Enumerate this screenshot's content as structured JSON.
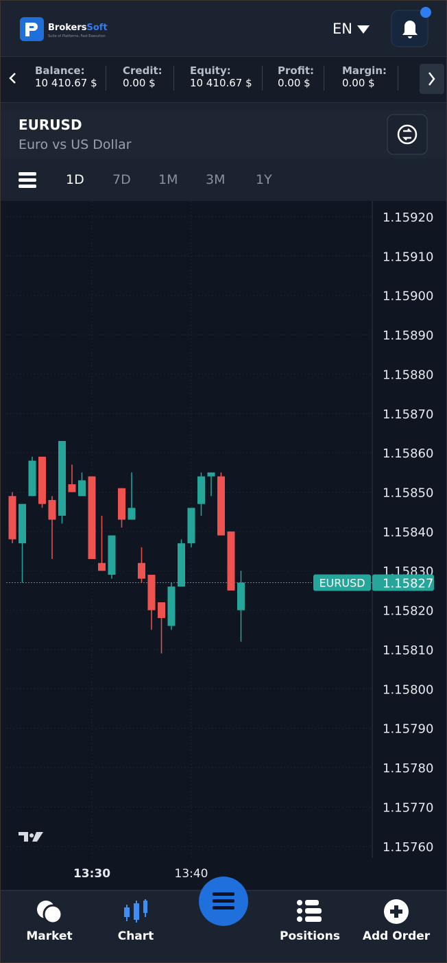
{
  "header": {
    "brand": "Brokers",
    "brand_accent": "Soft",
    "tagline": "Suite of Platforms, Fast Execution",
    "language": "EN"
  },
  "account": [
    {
      "label": "Balance:",
      "value": "10 410.67 $"
    },
    {
      "label": "Credit:",
      "value": "0.00 $"
    },
    {
      "label": "Equity:",
      "value": "10 410.67 $"
    },
    {
      "label": "Profit:",
      "value": "0.00 $"
    },
    {
      "label": "Margin:",
      "value": "0.00 $"
    }
  ],
  "instrument": {
    "symbol": "EURUSD",
    "description": "Euro vs US Dollar"
  },
  "timeframes": [
    "1D",
    "7D",
    "1M",
    "3M",
    "1Y"
  ],
  "active_timeframe": 0,
  "chart_data": {
    "type": "candlestick",
    "categories": [
      null,
      null,
      null,
      null,
      null,
      null,
      null,
      null,
      "13:30",
      null,
      null,
      null,
      null,
      null,
      null,
      null,
      null,
      null,
      "13:40",
      null,
      null,
      null,
      null,
      null
    ],
    "series": [
      {
        "name": "EURUSD",
        "up_color": "#26a69a",
        "down_color": "#ef5350",
        "open": [
          1.15849,
          1.15837,
          1.15849,
          1.15859,
          1.15848,
          1.15844,
          1.15852,
          1.15849,
          1.15854,
          1.15832,
          1.15829,
          1.15851,
          1.15843,
          1.15832,
          1.15829,
          1.15822,
          1.15816,
          1.15826,
          1.15837,
          1.15847,
          1.15854,
          1.15854,
          1.1584,
          1.1582
        ],
        "high": [
          1.1585,
          1.15847,
          1.15859,
          1.15859,
          1.15849,
          1.15863,
          1.15857,
          1.15855,
          1.15854,
          1.15844,
          1.15839,
          1.15851,
          1.15855,
          1.15836,
          1.15829,
          1.15822,
          1.15827,
          1.15838,
          1.15846,
          1.15855,
          1.15855,
          1.15855,
          1.1584,
          1.1583
        ],
        "low": [
          1.15837,
          1.15827,
          1.15849,
          1.15846,
          1.15833,
          1.15842,
          1.1585,
          1.15849,
          1.15833,
          1.1583,
          1.15828,
          1.15841,
          1.15843,
          1.15827,
          1.15815,
          1.15809,
          1.15815,
          1.15826,
          1.15836,
          1.15844,
          1.15849,
          1.15839,
          1.15825,
          1.15812
        ],
        "close": [
          1.15838,
          1.15847,
          1.15858,
          1.15847,
          1.15843,
          1.15863,
          1.1585,
          1.15853,
          1.15833,
          1.1583,
          1.15839,
          1.15843,
          1.15846,
          1.15828,
          1.1582,
          1.15818,
          1.15826,
          1.15837,
          1.15846,
          1.15854,
          1.15855,
          1.15839,
          1.15825,
          1.15827
        ]
      }
    ],
    "last_price": 1.15827,
    "ylim": [
      1.15757,
      1.15924
    ],
    "yticks": [
      {
        "value": 1.1592,
        "label": "1.15920"
      },
      {
        "value": 1.1591,
        "label": "1.15910"
      },
      {
        "value": 1.159,
        "label": "1.15900"
      },
      {
        "value": 1.1589,
        "label": "1.15890"
      },
      {
        "value": 1.1588,
        "label": "1.15880"
      },
      {
        "value": 1.1587,
        "label": "1.15870"
      },
      {
        "value": 1.1586,
        "label": "1.15860"
      },
      {
        "value": 1.1585,
        "label": "1.15850"
      },
      {
        "value": 1.1584,
        "label": "1.15840"
      },
      {
        "value": 1.1583,
        "label": "1.15830"
      },
      {
        "value": 1.1582,
        "label": "1.15820"
      },
      {
        "value": 1.1581,
        "label": "1.15810"
      },
      {
        "value": 1.158,
        "label": "1.15800"
      },
      {
        "value": 1.1579,
        "label": "1.15790"
      },
      {
        "value": 1.1578,
        "label": "1.15780"
      },
      {
        "value": 1.1577,
        "label": "1.15770"
      },
      {
        "value": 1.1576,
        "label": "1.15760"
      }
    ],
    "grid": true
  },
  "nav": [
    "Market",
    "Chart",
    "Positions",
    "Add Order"
  ]
}
